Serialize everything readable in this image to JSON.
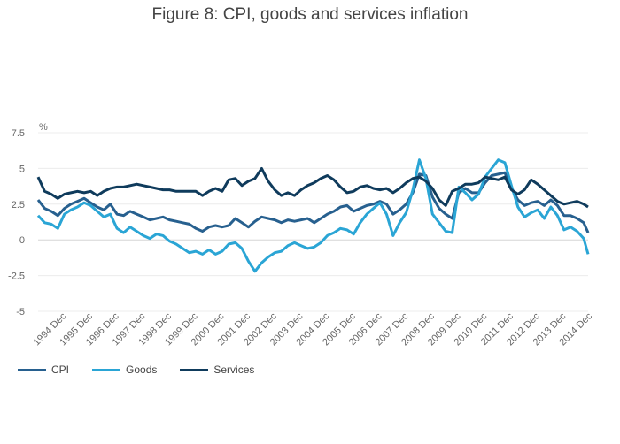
{
  "title": "Figure 8: CPI, goods and services inflation",
  "chart_data": {
    "type": "line",
    "title": "Figure 8: CPI, goods and services inflation",
    "ylabel": "%",
    "xlabel": "",
    "ylim": [
      -5,
      7.5
    ],
    "yticks": [
      7.5,
      5,
      2.5,
      0,
      -2.5,
      -5
    ],
    "ytick_labels": [
      "7.5",
      "5",
      "2.5",
      "0",
      "-2.5",
      "-5"
    ],
    "x_range": [
      1994.0,
      2014.917
    ],
    "xtick_labels": [
      "1994 Dec",
      "1995 Dec",
      "1996 Dec",
      "1997 Dec",
      "1998 Dec",
      "1999 Dec",
      "2000 Dec",
      "2001 Dec",
      "2002 Dec",
      "2003 Dec",
      "2004 Dec",
      "2005 Dec",
      "2006 Dec",
      "2007 Dec",
      "2008 Dec",
      "2009 Dec",
      "2010 Dec",
      "2011 Dec",
      "2012 Dec",
      "2013 Dec",
      "2014 Dec"
    ],
    "grid": true,
    "legend_position": "bottom-left",
    "series": [
      {
        "name": "CPI",
        "color": "#27608f",
        "x": [
          1994.0,
          1994.25,
          1994.5,
          1994.75,
          1995.0,
          1995.25,
          1995.5,
          1995.75,
          1996.0,
          1996.25,
          1996.5,
          1996.75,
          1997.0,
          1997.25,
          1997.5,
          1997.75,
          1998.0,
          1998.25,
          1998.5,
          1998.75,
          1999.0,
          1999.25,
          1999.5,
          1999.75,
          2000.0,
          2000.25,
          2000.5,
          2000.75,
          2001.0,
          2001.25,
          2001.5,
          2001.75,
          2002.0,
          2002.25,
          2002.5,
          2002.75,
          2003.0,
          2003.25,
          2003.5,
          2003.75,
          2004.0,
          2004.25,
          2004.5,
          2004.75,
          2005.0,
          2005.25,
          2005.5,
          2005.75,
          2006.0,
          2006.25,
          2006.5,
          2006.75,
          2007.0,
          2007.25,
          2007.5,
          2007.75,
          2008.0,
          2008.25,
          2008.5,
          2008.75,
          2009.0,
          2009.25,
          2009.5,
          2009.75,
          2010.0,
          2010.25,
          2010.5,
          2010.75,
          2011.0,
          2011.25,
          2011.5,
          2011.75,
          2012.0,
          2012.25,
          2012.5,
          2012.75,
          2013.0,
          2013.25,
          2013.5,
          2013.75,
          2014.0,
          2014.25,
          2014.5,
          2014.75,
          2014.917
        ],
        "values": [
          2.8,
          2.2,
          2.0,
          1.7,
          2.2,
          2.5,
          2.7,
          2.9,
          2.6,
          2.3,
          2.1,
          2.5,
          1.8,
          1.7,
          2.0,
          1.8,
          1.6,
          1.4,
          1.5,
          1.6,
          1.4,
          1.3,
          1.2,
          1.1,
          0.8,
          0.6,
          0.9,
          1.0,
          0.9,
          1.0,
          1.5,
          1.2,
          0.9,
          1.3,
          1.6,
          1.5,
          1.4,
          1.2,
          1.4,
          1.3,
          1.4,
          1.5,
          1.2,
          1.5,
          1.8,
          2.0,
          2.3,
          2.4,
          2.0,
          2.2,
          2.4,
          2.5,
          2.7,
          2.5,
          1.8,
          2.1,
          2.5,
          3.3,
          4.6,
          4.5,
          3.0,
          2.2,
          1.8,
          1.5,
          3.3,
          3.6,
          3.3,
          3.3,
          4.0,
          4.5,
          4.6,
          4.7,
          3.6,
          2.8,
          2.4,
          2.6,
          2.7,
          2.4,
          2.8,
          2.4,
          1.7,
          1.7,
          1.5,
          1.2,
          0.5
        ]
      },
      {
        "name": "Goods",
        "color": "#2aa5d5",
        "x": [
          1994.0,
          1994.25,
          1994.5,
          1994.75,
          1995.0,
          1995.25,
          1995.5,
          1995.75,
          1996.0,
          1996.25,
          1996.5,
          1996.75,
          1997.0,
          1997.25,
          1997.5,
          1997.75,
          1998.0,
          1998.25,
          1998.5,
          1998.75,
          1999.0,
          1999.25,
          1999.5,
          1999.75,
          2000.0,
          2000.25,
          2000.5,
          2000.75,
          2001.0,
          2001.25,
          2001.5,
          2001.75,
          2002.0,
          2002.25,
          2002.5,
          2002.75,
          2003.0,
          2003.25,
          2003.5,
          2003.75,
          2004.0,
          2004.25,
          2004.5,
          2004.75,
          2005.0,
          2005.25,
          2005.5,
          2005.75,
          2006.0,
          2006.25,
          2006.5,
          2006.75,
          2007.0,
          2007.25,
          2007.5,
          2007.75,
          2008.0,
          2008.25,
          2008.5,
          2008.75,
          2009.0,
          2009.25,
          2009.5,
          2009.75,
          2010.0,
          2010.25,
          2010.5,
          2010.75,
          2011.0,
          2011.25,
          2011.5,
          2011.75,
          2012.0,
          2012.25,
          2012.5,
          2012.75,
          2013.0,
          2013.25,
          2013.5,
          2013.75,
          2014.0,
          2014.25,
          2014.5,
          2014.75,
          2014.917
        ],
        "values": [
          1.7,
          1.2,
          1.1,
          0.8,
          1.8,
          2.1,
          2.3,
          2.6,
          2.4,
          2.0,
          1.6,
          1.8,
          0.8,
          0.5,
          0.9,
          0.6,
          0.3,
          0.1,
          0.4,
          0.3,
          -0.1,
          -0.3,
          -0.6,
          -0.9,
          -0.8,
          -1.0,
          -0.7,
          -1.0,
          -0.8,
          -0.3,
          -0.2,
          -0.6,
          -1.5,
          -2.2,
          -1.6,
          -1.2,
          -0.9,
          -0.8,
          -0.4,
          -0.2,
          -0.4,
          -0.6,
          -0.5,
          -0.2,
          0.3,
          0.5,
          0.8,
          0.7,
          0.4,
          1.2,
          1.8,
          2.2,
          2.6,
          1.8,
          0.3,
          1.2,
          1.9,
          3.5,
          5.6,
          4.3,
          1.8,
          1.2,
          0.6,
          0.5,
          3.7,
          3.3,
          2.8,
          3.2,
          4.4,
          5.0,
          5.6,
          5.4,
          3.8,
          2.3,
          1.6,
          1.9,
          2.1,
          1.5,
          2.3,
          1.7,
          0.7,
          0.9,
          0.6,
          0.1,
          -1.0
        ]
      },
      {
        "name": "Services",
        "color": "#0f3b5c",
        "x": [
          1994.0,
          1994.25,
          1994.5,
          1994.75,
          1995.0,
          1995.25,
          1995.5,
          1995.75,
          1996.0,
          1996.25,
          1996.5,
          1996.75,
          1997.0,
          1997.25,
          1997.5,
          1997.75,
          1998.0,
          1998.25,
          1998.5,
          1998.75,
          1999.0,
          1999.25,
          1999.5,
          1999.75,
          2000.0,
          2000.25,
          2000.5,
          2000.75,
          2001.0,
          2001.25,
          2001.5,
          2001.75,
          2002.0,
          2002.25,
          2002.5,
          2002.75,
          2003.0,
          2003.25,
          2003.5,
          2003.75,
          2004.0,
          2004.25,
          2004.5,
          2004.75,
          2005.0,
          2005.25,
          2005.5,
          2005.75,
          2006.0,
          2006.25,
          2006.5,
          2006.75,
          2007.0,
          2007.25,
          2007.5,
          2007.75,
          2008.0,
          2008.25,
          2008.5,
          2008.75,
          2009.0,
          2009.25,
          2009.5,
          2009.75,
          2010.0,
          2010.25,
          2010.5,
          2010.75,
          2011.0,
          2011.25,
          2011.5,
          2011.75,
          2012.0,
          2012.25,
          2012.5,
          2012.75,
          2013.0,
          2013.25,
          2013.5,
          2013.75,
          2014.0,
          2014.25,
          2014.5,
          2014.75,
          2014.917
        ],
        "values": [
          4.4,
          3.4,
          3.2,
          2.9,
          3.2,
          3.3,
          3.4,
          3.3,
          3.4,
          3.1,
          3.4,
          3.6,
          3.7,
          3.7,
          3.8,
          3.9,
          3.8,
          3.7,
          3.6,
          3.5,
          3.5,
          3.4,
          3.4,
          3.4,
          3.4,
          3.1,
          3.4,
          3.6,
          3.4,
          4.2,
          4.3,
          3.8,
          4.1,
          4.3,
          5.0,
          4.1,
          3.5,
          3.1,
          3.3,
          3.1,
          3.5,
          3.8,
          4.0,
          4.3,
          4.5,
          4.2,
          3.7,
          3.3,
          3.4,
          3.7,
          3.8,
          3.6,
          3.5,
          3.6,
          3.3,
          3.6,
          4.0,
          4.3,
          4.4,
          4.1,
          3.6,
          2.8,
          2.4,
          3.4,
          3.6,
          3.9,
          3.9,
          4.0,
          4.4,
          4.3,
          4.2,
          4.4,
          3.5,
          3.2,
          3.5,
          4.2,
          3.9,
          3.5,
          3.1,
          2.7,
          2.5,
          2.6,
          2.7,
          2.5,
          2.3
        ]
      }
    ]
  }
}
